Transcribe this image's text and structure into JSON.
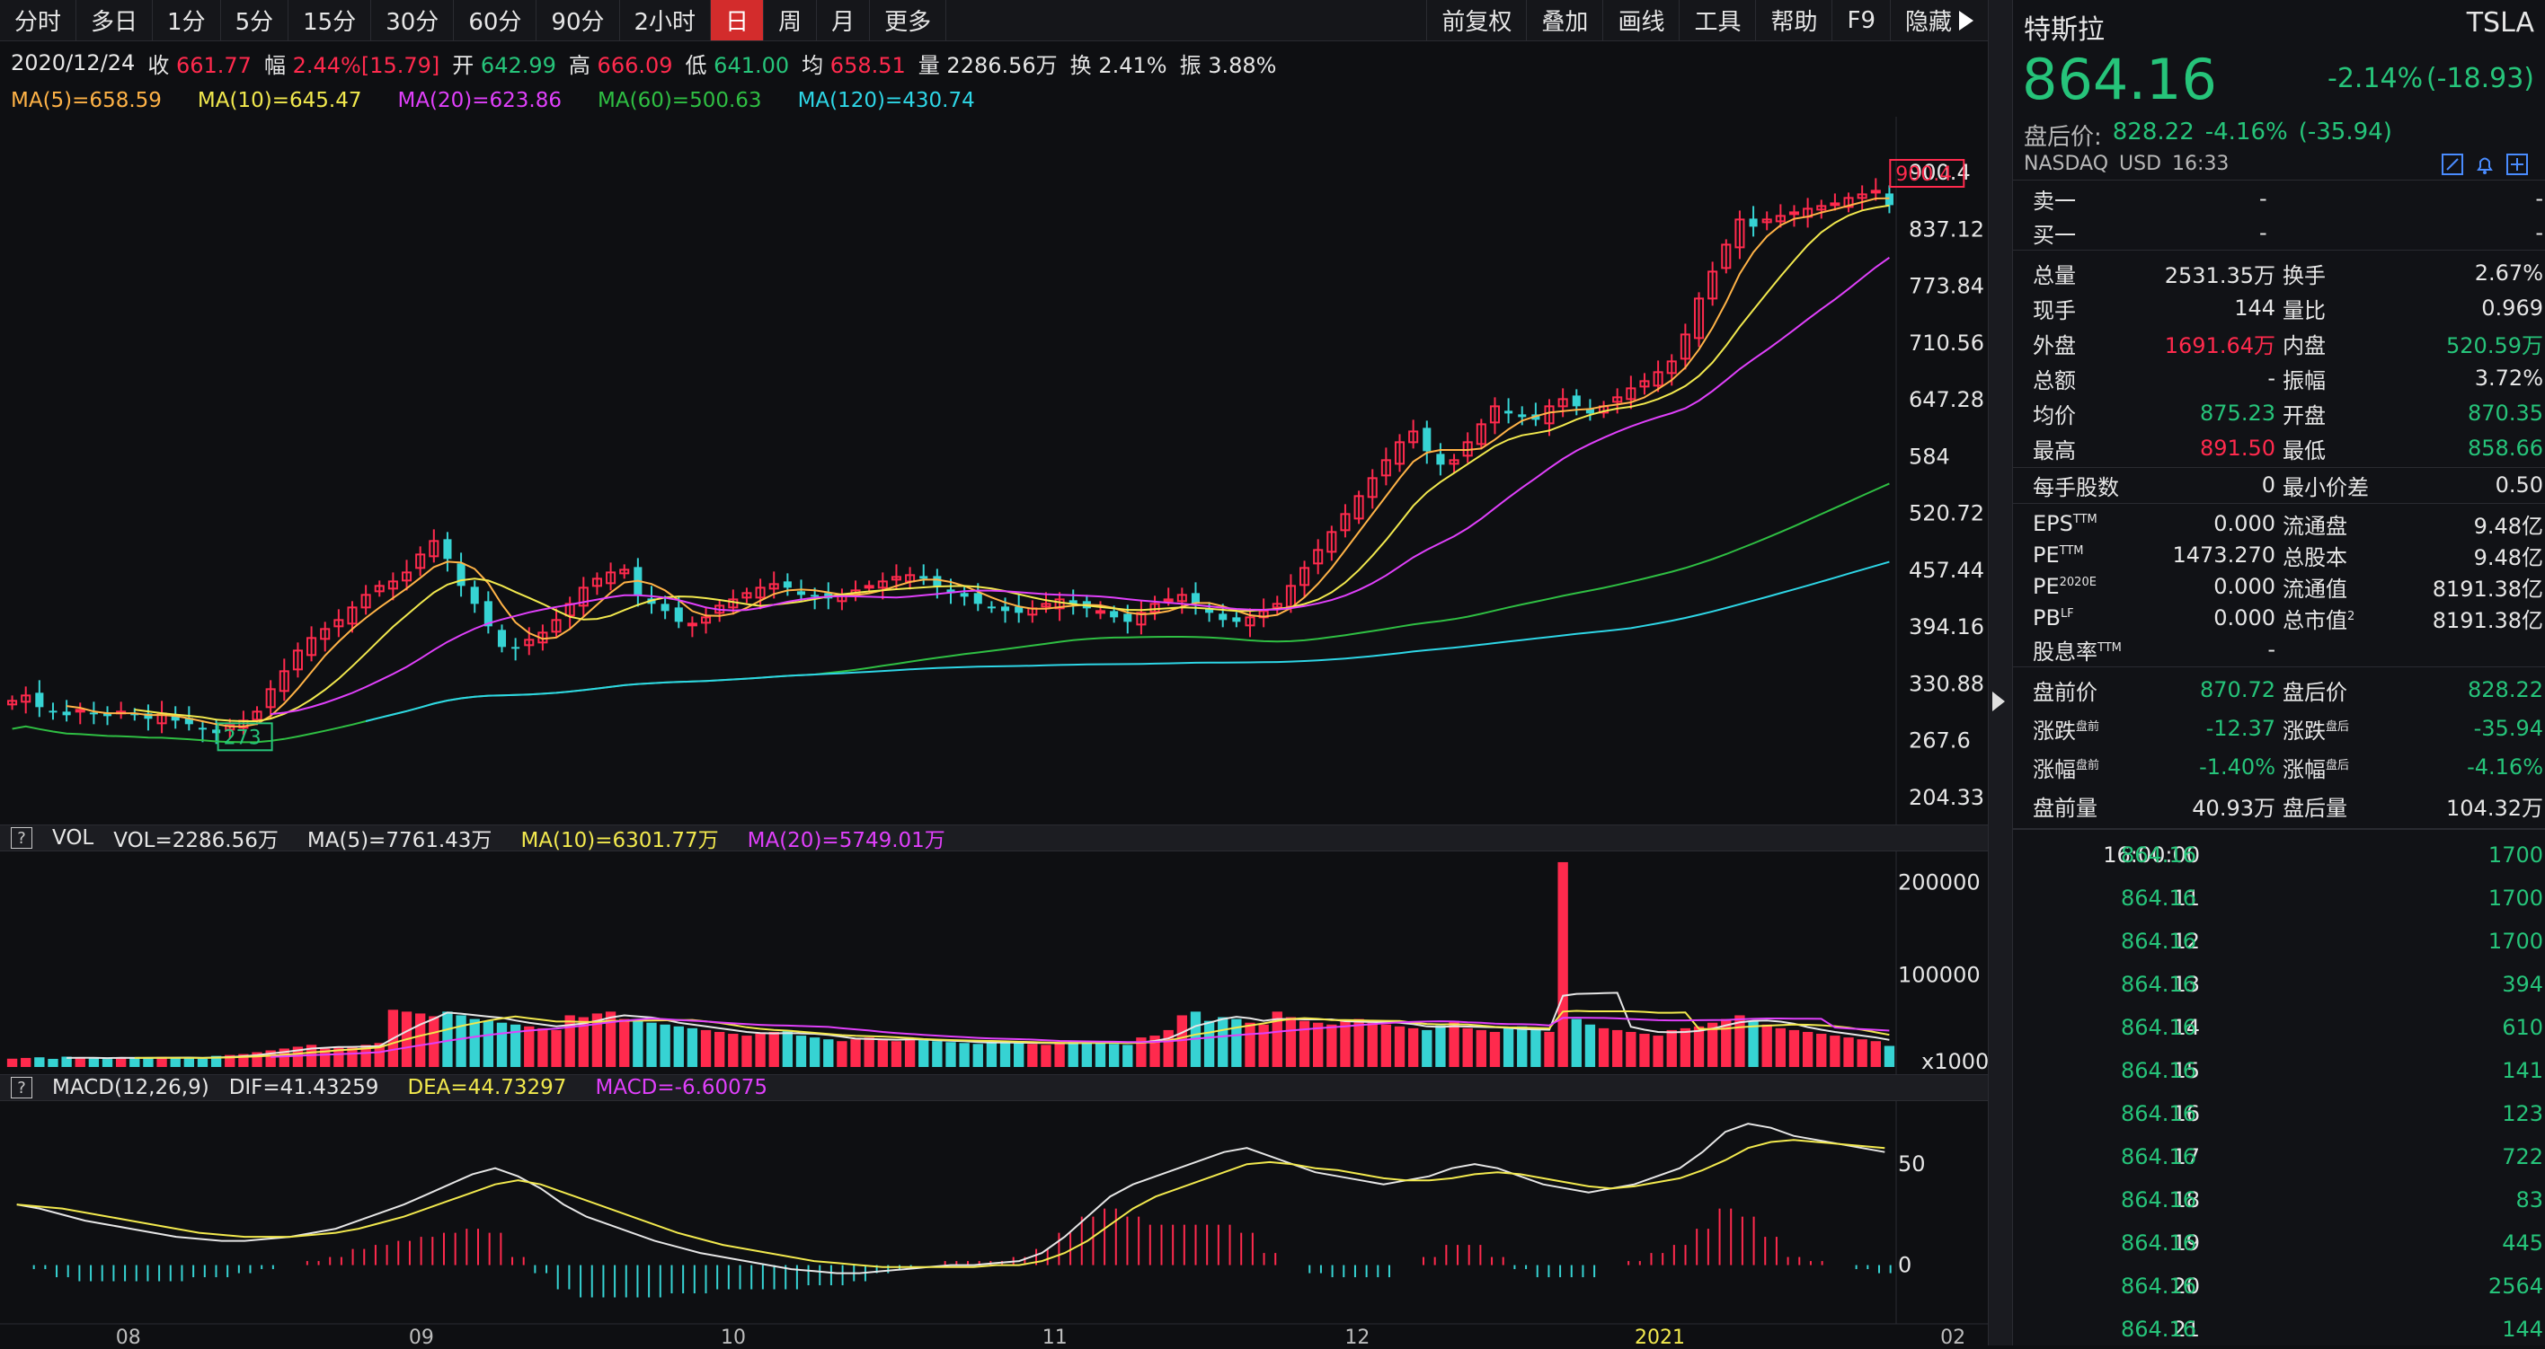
{
  "toolbar": {
    "periods": [
      "分时",
      "多日",
      "1分",
      "5分",
      "15分",
      "30分",
      "60分",
      "90分",
      "2小时",
      "日",
      "周",
      "月",
      "更多"
    ],
    "active_period": "日",
    "right_tools": [
      "前复权",
      "叠加",
      "画线",
      "工具",
      "帮助",
      "F9"
    ],
    "hide_label": "隐藏"
  },
  "quote": {
    "date": "2020/12/24",
    "close_label": "收",
    "close": "661.77",
    "change_label": "幅",
    "change": "2.44%[15.79]",
    "open_label": "开",
    "open": "642.99",
    "high_label": "高",
    "high": "666.09",
    "low_label": "低",
    "low": "641.00",
    "avg_label": "均",
    "avg": "658.51",
    "vol_label": "量",
    "vol": "2286.56万",
    "turnover_label": "换",
    "turnover": "2.41%",
    "amplitude_label": "振",
    "amplitude": "3.88%"
  },
  "ma_legend": [
    {
      "text": "MA(5)=658.59",
      "color": "#ffb347"
    },
    {
      "text": "MA(10)=645.47",
      "color": "#f2e94e"
    },
    {
      "text": "MA(20)=623.86",
      "color": "#e040fb"
    },
    {
      "text": "MA(60)=500.63",
      "color": "#2fbf43"
    },
    {
      "text": "MA(120)=430.74",
      "color": "#2ed6e6"
    }
  ],
  "vol_header": {
    "q": "?",
    "name": "VOL",
    "vol": "VOL=2286.56万",
    "ma5": "MA(5)=7761.43万",
    "ma10": "MA(10)=6301.77万",
    "ma20": "MA(20)=5749.01万"
  },
  "macd_header": {
    "q": "?",
    "name": "MACD(12,26,9)",
    "dif": "DIF=41.43259",
    "dea": "DEA=44.73297",
    "macd": "MACD=-6.60075"
  },
  "chart_data": [
    {
      "type": "candlestick",
      "title": "",
      "yticks": [
        "900.4",
        "837.12",
        "773.84",
        "710.56",
        "647.28",
        "584",
        "520.72",
        "457.44",
        "394.16",
        "330.88",
        "267.6",
        "204.33"
      ],
      "ylim": [
        204.33,
        900.4
      ],
      "x_labels": [
        "08",
        "09",
        "10",
        "11",
        "12",
        "2021",
        "02"
      ],
      "max_marker": "900.4",
      "min_marker": "273",
      "closes": [
        312,
        318,
        305,
        300,
        296,
        302,
        298,
        295,
        300,
        296,
        292,
        298,
        290,
        286,
        280,
        276,
        285,
        290,
        300,
        325,
        345,
        368,
        382,
        392,
        402,
        416,
        430,
        440,
        445,
        455,
        475,
        490,
        470,
        440,
        420,
        395,
        372,
        370,
        380,
        388,
        402,
        420,
        438,
        448,
        455,
        458,
        430,
        420,
        412,
        400,
        398,
        405,
        418,
        425,
        432,
        438,
        442,
        438,
        430,
        428,
        426,
        430,
        435,
        440,
        445,
        450,
        452,
        448,
        440,
        432,
        428,
        420,
        416,
        412,
        410,
        415,
        420,
        425,
        420,
        415,
        412,
        405,
        400,
        410,
        420,
        425,
        430,
        420,
        410,
        402,
        400,
        405,
        412,
        420,
        440,
        460,
        480,
        500,
        520,
        540,
        560,
        580,
        600,
        612,
        590,
        575,
        580,
        600,
        620,
        640,
        632,
        628,
        625,
        640,
        648,
        640,
        632,
        640,
        650,
        660,
        668,
        678,
        690,
        720,
        760,
        790,
        820,
        848,
        840,
        848,
        852,
        856,
        860,
        863,
        866,
        872,
        876,
        880,
        864
      ]
    },
    {
      "type": "bar",
      "title": "",
      "yticks": [
        "200000",
        "100000"
      ],
      "unit_label": "x1000",
      "ylim": [
        0,
        220000
      ],
      "values": [
        9000,
        9800,
        10500,
        8800,
        11200,
        9500,
        10200,
        8700,
        9900,
        10800,
        9600,
        11000,
        9400,
        10300,
        8900,
        12000,
        13000,
        14000,
        16000,
        18000,
        20000,
        22000,
        24000,
        20000,
        22000,
        21000,
        24000,
        26000,
        62000,
        60000,
        58000,
        55000,
        60000,
        56000,
        52000,
        50000,
        48000,
        46000,
        44000,
        42000,
        40000,
        56000,
        54000,
        58000,
        60000,
        52000,
        50000,
        48000,
        46000,
        44000,
        42000,
        40000,
        38000,
        36000,
        34000,
        36000,
        38000,
        40000,
        34000,
        32000,
        30000,
        28000,
        30000,
        32000,
        30000,
        28000,
        30000,
        29000,
        28000,
        27000,
        26000,
        25000,
        27000,
        28000,
        26000,
        25000,
        24000,
        26000,
        28000,
        27000,
        26000,
        25000,
        24000,
        32000,
        34000,
        40000,
        56000,
        60000,
        50000,
        54000,
        52000,
        48000,
        46000,
        60000,
        54000,
        50000,
        48000,
        46000,
        50000,
        52000,
        48000,
        46000,
        44000,
        42000,
        40000,
        45000,
        50000,
        42000,
        40000,
        38000,
        42000,
        44000,
        40000,
        38000,
        222000,
        52000,
        46000,
        42000,
        40000,
        38000,
        36000,
        34000,
        40000,
        42000,
        44000,
        48000,
        52000,
        56000,
        50000,
        46000,
        42000,
        40000,
        38000,
        36000,
        34000,
        32000,
        30000,
        28000,
        22862
      ],
      "series": [
        {
          "name": "MA(5)",
          "value": "7761.43万"
        },
        {
          "name": "MA(10)",
          "value": "6301.77万"
        },
        {
          "name": "MA(20)",
          "value": "5749.01万"
        }
      ]
    },
    {
      "type": "bar",
      "title": "",
      "yticks": [
        "50",
        "0"
      ],
      "ylim": [
        -30,
        75
      ],
      "dif": [
        30,
        28,
        25,
        22,
        20,
        18,
        16,
        14,
        13,
        12,
        12,
        13,
        14,
        16,
        18,
        22,
        26,
        30,
        35,
        40,
        45,
        48,
        44,
        38,
        30,
        24,
        20,
        16,
        12,
        9,
        6,
        4,
        2,
        0,
        -2,
        -3,
        -4,
        -4,
        -3,
        -2,
        -1,
        0,
        0,
        1,
        2,
        6,
        14,
        24,
        34,
        40,
        44,
        48,
        52,
        56,
        58,
        54,
        50,
        46,
        44,
        42,
        40,
        42,
        44,
        48,
        50,
        48,
        44,
        40,
        38,
        36,
        38,
        40,
        44,
        48,
        56,
        66,
        70,
        68,
        64,
        62,
        60,
        58,
        56
      ],
      "dea": [
        30,
        29,
        28,
        26,
        24,
        22,
        20,
        18,
        16,
        15,
        14,
        14,
        14,
        15,
        16,
        18,
        21,
        24,
        28,
        32,
        36,
        40,
        42,
        40,
        36,
        32,
        28,
        24,
        20,
        16,
        13,
        10,
        8,
        6,
        4,
        2,
        1,
        0,
        -1,
        -1,
        -1,
        -1,
        -1,
        0,
        0,
        2,
        6,
        12,
        20,
        28,
        34,
        38,
        42,
        46,
        50,
        51,
        50,
        48,
        47,
        45,
        43,
        42,
        42,
        43,
        45,
        46,
        45,
        43,
        41,
        39,
        38,
        39,
        41,
        43,
        47,
        52,
        58,
        61,
        62,
        61,
        60,
        59,
        58
      ]
    }
  ],
  "stock": {
    "name": "特斯拉",
    "ticker": "TSLA",
    "price": "864.16",
    "change_pct": "-2.14%",
    "change": "(-18.93)",
    "after_label": "盘后价:",
    "after_price": "828.22",
    "after_pct": "-4.16%",
    "after_change": "(-35.94)",
    "exchange": "NASDAQ",
    "currency": "USD",
    "time": "16:33"
  },
  "order_book": [
    {
      "label": "卖一",
      "price": "-",
      "vol": "-"
    },
    {
      "label": "买一",
      "price": "-",
      "vol": "-"
    }
  ],
  "stats": [
    {
      "l1": "总量",
      "v1": "2531.35万",
      "c1": "text",
      "l2": "换手",
      "v2": "2.67%",
      "c2": "text"
    },
    {
      "l1": "现手",
      "v1": "144",
      "c1": "text",
      "l2": "量比",
      "v2": "0.969",
      "c2": "text"
    },
    {
      "l1": "外盘",
      "v1": "1691.64万",
      "c1": "red",
      "l2": "内盘",
      "v2": "520.59万",
      "c2": "green"
    },
    {
      "l1": "总额",
      "v1": "-",
      "c1": "text",
      "l2": "振幅",
      "v2": "3.72%",
      "c2": "text"
    },
    {
      "l1": "均价",
      "v1": "875.23",
      "c1": "green",
      "l2": "开盘",
      "v2": "870.35",
      "c2": "green"
    },
    {
      "l1": "最高",
      "v1": "891.50",
      "c1": "red",
      "l2": "最低",
      "v2": "858.66",
      "c2": "green"
    }
  ],
  "lot": {
    "l1": "每手股数",
    "v1": "0",
    "l2": "最小价差",
    "v2": "0.50"
  },
  "fundamentals": [
    {
      "l1": "EPS",
      "sup1": "TTM",
      "v1": "0.000",
      "l2": "流通盘",
      "sup2": "",
      "v2": "9.48亿"
    },
    {
      "l1": "PE",
      "sup1": "TTM",
      "v1": "1473.270",
      "l2": "总股本",
      "sup2": "",
      "v2": "9.48亿"
    },
    {
      "l1": "PE",
      "sup1": "2020E",
      "v1": "0.000",
      "l2": "流通值",
      "sup2": "",
      "v2": "8191.38亿"
    },
    {
      "l1": "PB",
      "sup1": "LF",
      "v1": "0.000",
      "l2": "总市值",
      "sup2": "2",
      "v2": "8191.38亿"
    },
    {
      "l1": "股息率",
      "sup1": "TTM",
      "v1": "-",
      "l2": "",
      "sup2": "",
      "v2": ""
    }
  ],
  "extended": [
    {
      "l1": "盘前价",
      "sup1": "",
      "v1": "870.72",
      "c1": "green",
      "l2": "盘后价",
      "sup2": "",
      "v2": "828.22",
      "c2": "green"
    },
    {
      "l1": "涨跌",
      "sup1": "盘前",
      "v1": "-12.37",
      "c1": "green",
      "l2": "涨跌",
      "sup2": "盘后",
      "v2": "-35.94",
      "c2": "green"
    },
    {
      "l1": "涨幅",
      "sup1": "盘前",
      "v1": "-1.40%",
      "c1": "green",
      "l2": "涨幅",
      "sup2": "盘后",
      "v2": "-4.16%",
      "c2": "green"
    },
    {
      "l1": "盘前量",
      "sup1": "",
      "v1": "40.93万",
      "c1": "text",
      "l2": "盘后量",
      "sup2": "",
      "v2": "104.32万",
      "c2": "text"
    }
  ],
  "ticks": [
    {
      "time": "16:00:00",
      "price": "864.16",
      "vol": "1700"
    },
    {
      "time": "11",
      "price": "864.16",
      "vol": "1700"
    },
    {
      "time": "12",
      "price": "864.16",
      "vol": "1700"
    },
    {
      "time": "13",
      "price": "864.16",
      "vol": "394"
    },
    {
      "time": "14",
      "price": "864.16",
      "vol": "610"
    },
    {
      "time": "15",
      "price": "864.16",
      "vol": "141"
    },
    {
      "time": "16",
      "price": "864.16",
      "vol": "123"
    },
    {
      "time": "17",
      "price": "864.16",
      "vol": "722"
    },
    {
      "time": "18",
      "price": "864.16",
      "vol": "83"
    },
    {
      "time": "19",
      "price": "864.16",
      "vol": "445"
    },
    {
      "time": "20",
      "price": "864.16",
      "vol": "2564"
    },
    {
      "time": "21",
      "price": "864.16",
      "vol": "144"
    }
  ],
  "colors": {
    "up": "#ff2a4d",
    "down": "#36d3d3",
    "green": "#26c47a",
    "text": "#e6e6e6"
  }
}
